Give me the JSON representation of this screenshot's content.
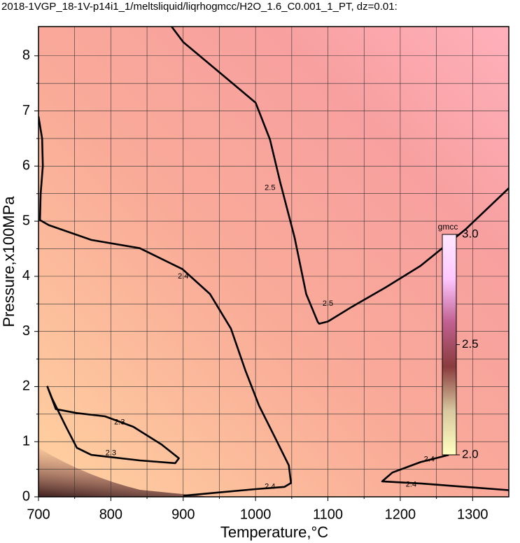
{
  "chart_data": {
    "type": "contour",
    "title": "2018-1VGP_18-1V-p14i1_1/meltsliquid/liqrhogmcc/H2O_1.6_C0.001_1_PT, dz=0.01:",
    "x_label": "Temperature,°C",
    "y_label": "Pressure,x100MPa",
    "xlim": [
      700,
      1350
    ],
    "ylim": [
      0,
      8.53
    ],
    "xticks": [
      700,
      800,
      900,
      1000,
      1100,
      1200,
      1300
    ],
    "yticks": [
      0,
      1,
      2,
      3,
      4,
      5,
      6,
      7,
      8
    ],
    "x_minor": [
      750,
      850,
      950,
      1050,
      1150,
      1250
    ],
    "y_minor": [
      0.5,
      1.5,
      2.5,
      3.5,
      4.5,
      5.5,
      6.5,
      7.5
    ],
    "grid": true,
    "contour_color": "#000000",
    "contours": [
      {
        "level": 2.5,
        "T": [
          884,
          900,
          950,
          1000,
          1020,
          1034,
          1054,
          1070,
          1086,
          1088,
          1100,
          1131,
          1180,
          1228,
          1290,
          1351
        ],
        "P": [
          8.53,
          8.25,
          7.7,
          7.15,
          6.48,
          5.71,
          4.7,
          3.68,
          3.17,
          3.14,
          3.18,
          3.43,
          3.8,
          4.19,
          4.85,
          5.61
        ],
        "label_points": [
          [
            1020,
            5.6
          ],
          [
            1100,
            3.5
          ]
        ]
      },
      {
        "level": 2.4,
        "T": [
          700,
          705,
          706,
          703,
          702,
          714,
          773,
          840,
          899,
          937,
          966,
          986,
          1005,
          1029,
          1046,
          1049,
          1040,
          1000,
          950,
          900
        ],
        "P": [
          6.9,
          6.5,
          6.0,
          5.5,
          5.02,
          4.93,
          4.66,
          4.51,
          4.13,
          3.68,
          3.05,
          2.29,
          1.65,
          1.02,
          0.57,
          0.25,
          0.18,
          0.14,
          0.08,
          0.02
        ],
        "label_points": [
          [
            900,
            4.0
          ],
          [
            1020,
            0.18
          ]
        ]
      },
      {
        "level": 2.4,
        "T": [
          1350,
          1300,
          1230,
          1175,
          1189,
          1228,
          1267
        ],
        "P": [
          0.12,
          0.17,
          0.24,
          0.28,
          0.44,
          0.63,
          0.76
        ],
        "label_points": [
          [
            1215,
            0.22
          ],
          [
            1240,
            0.68
          ]
        ]
      },
      {
        "level": 2.3,
        "T": [
          712,
          719,
          738,
          753,
          773,
          840,
          889,
          894,
          870,
          831,
          792,
          753,
          724,
          712
        ],
        "P": [
          2.01,
          1.78,
          1.27,
          0.89,
          0.76,
          0.66,
          0.61,
          0.7,
          0.95,
          1.27,
          1.46,
          1.52,
          1.59,
          2.01
        ],
        "label_points": [
          [
            800,
            0.79
          ],
          [
            812,
            1.35
          ]
        ]
      }
    ],
    "colorbar": {
      "label": "gmcc",
      "lim": [
        2,
        3
      ],
      "ticks": [
        {
          "value": 2,
          "label": "2.0"
        },
        2.5,
        {
          "value": 3,
          "label": "3.0"
        }
      ],
      "colors": [
        "#ffffc0",
        "#d8c8a0",
        "#8a3c3c",
        "#c06090",
        "#ffc8ff",
        "#ffe8ff"
      ]
    }
  }
}
